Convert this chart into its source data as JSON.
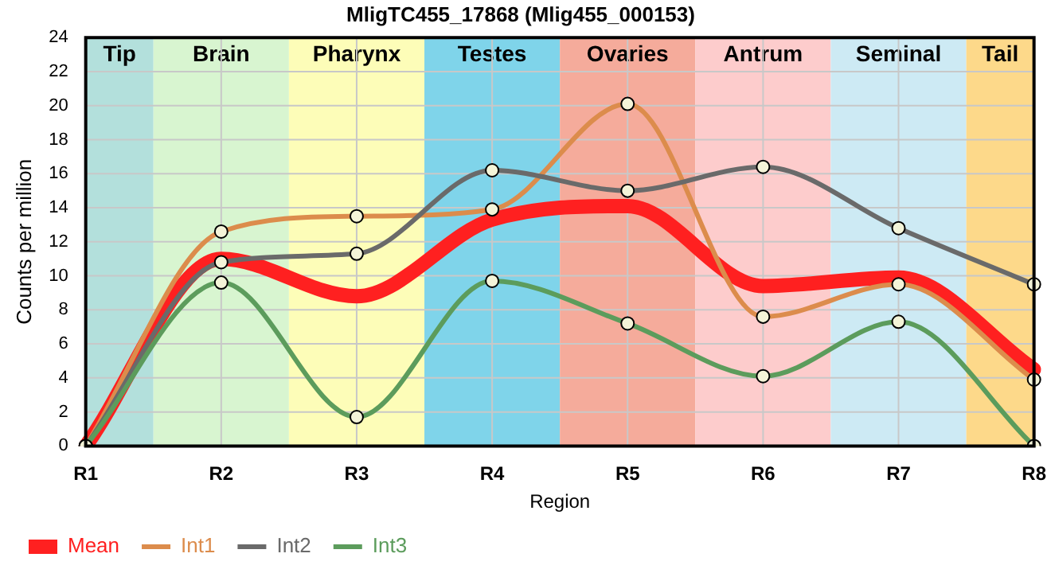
{
  "chart_data": {
    "type": "line",
    "title": "MligTC455_17868 (Mlig455_000153)",
    "xlabel": "Region",
    "ylabel": "Counts per million",
    "categories": [
      "R1",
      "R2",
      "R3",
      "R4",
      "R5",
      "R6",
      "R7",
      "R8"
    ],
    "ylim": [
      0,
      24
    ],
    "yticks": [
      0,
      2,
      4,
      6,
      8,
      10,
      12,
      14,
      16,
      18,
      20,
      22,
      24
    ],
    "series": [
      {
        "name": "Mean",
        "color": "#ff2020",
        "marker": "none",
        "values": [
          0,
          11.0,
          8.8,
          13.3,
          14.1,
          9.4,
          9.9,
          4.5
        ]
      },
      {
        "name": "Int1",
        "color": "#dc8c4c",
        "values": [
          0,
          12.6,
          13.5,
          13.9,
          20.1,
          7.6,
          9.5,
          3.9
        ]
      },
      {
        "name": "Int2",
        "color": "#6a6a6a",
        "values": [
          0,
          10.8,
          11.3,
          16.2,
          15.0,
          16.4,
          12.8,
          9.5
        ]
      },
      {
        "name": "Int3",
        "color": "#5c9c5c",
        "values": [
          0,
          9.6,
          1.7,
          9.7,
          7.2,
          4.1,
          7.3,
          0
        ]
      }
    ],
    "bands": [
      {
        "axis": "x",
        "from": "R1",
        "to": "R1",
        "label": "Tip",
        "color": "#b3e0dc"
      },
      {
        "axis": "x",
        "from": "R2",
        "to": "R2",
        "label": "Brain",
        "color": "#d8f5d0"
      },
      {
        "axis": "x",
        "from": "R3",
        "to": "R3",
        "label": "Pharynx",
        "color": "#fdfdb8"
      },
      {
        "axis": "x",
        "from": "R4",
        "to": "R4",
        "label": "Testes",
        "color": "#7fd4ea"
      },
      {
        "axis": "x",
        "from": "R5",
        "to": "R5",
        "label": "Ovaries",
        "color": "#f5ab9b"
      },
      {
        "axis": "x",
        "from": "R6",
        "to": "R6",
        "label": "Antrum",
        "color": "#fdcccc"
      },
      {
        "axis": "x",
        "from": "R7",
        "to": "R7",
        "label": "Seminal",
        "color": "#cdeaf4"
      },
      {
        "axis": "x",
        "from": "R8",
        "to": "R8",
        "label": "Tail",
        "color": "#fdd98a"
      }
    ],
    "grid": true,
    "legend": "bottom left",
    "marker": "circle",
    "line_style": "solid"
  }
}
